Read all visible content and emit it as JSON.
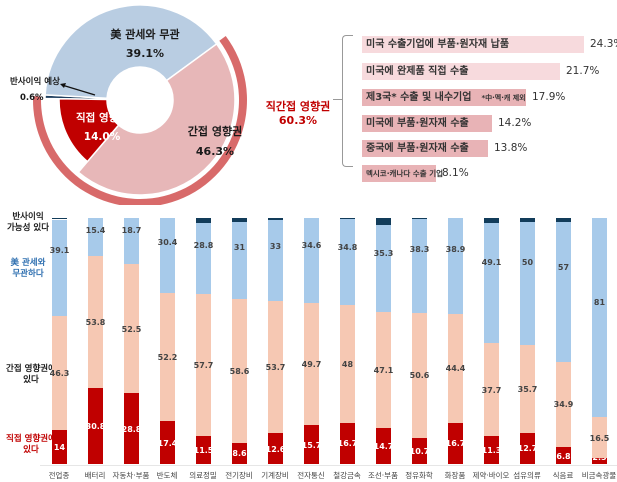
{
  "donut": {
    "segments": [
      {
        "key": "unrelated",
        "label": "美 관세와 무관",
        "value": "39.1%",
        "color": "#b9cde2"
      },
      {
        "key": "indirect",
        "label": "간접 영향권",
        "value": "46.3%",
        "color": "#e7b7b8"
      },
      {
        "key": "direct",
        "label": "직접 영향권",
        "value": "14.0%",
        "color": "#c00000"
      },
      {
        "key": "benefit",
        "label": "반사이익 예상",
        "value": "0.6%",
        "color": "#1f3f5f"
      }
    ],
    "outer_ring_label": "직간접 영향권",
    "outer_ring_value": "60.3%",
    "outer_ring_color": "#d86a6a"
  },
  "breakdown": {
    "items": [
      {
        "label": "미국 수출기업에 부품·원자재 납품",
        "value": "24.3%",
        "note": ""
      },
      {
        "label": "미국에 완제품 직접 수출",
        "value": "21.7%",
        "note": ""
      },
      {
        "label": "제3국* 수출 및 내수기업",
        "value": "17.9%",
        "note": "*中·멕·캐 제외"
      },
      {
        "label": "미국에 부품·원자재 수출",
        "value": "14.2%",
        "note": ""
      },
      {
        "label": "중국에 부품·원자재 수출",
        "value": "13.8%",
        "note": ""
      },
      {
        "label": "멕시코·캐나다 수출 기업",
        "value": "8.1%",
        "note": ""
      }
    ]
  },
  "legend": {
    "benefit": "반사이익\n가능성 있다",
    "unrelated": "美 관세와\n무관하다",
    "indirect": "간접 영향권에\n있다",
    "direct": "직접 영향권에\n있다"
  },
  "chart_data": [
    {
      "type": "pie",
      "title": "",
      "categories": [
        "美 관세와 무관",
        "간접 영향권",
        "직접 영향권",
        "반사이익 예상"
      ],
      "values": [
        39.1,
        46.3,
        14.0,
        0.6
      ],
      "annotations": [
        "직간접 영향권 60.3%"
      ]
    },
    {
      "type": "bar",
      "orientation": "horizontal",
      "categories": [
        "미국 수출기업에 부품·원자재 납품",
        "미국에 완제품 직접 수출",
        "제3국* 수출 및 내수기업",
        "미국에 부품·원자재 수출",
        "중국에 부품·원자재 수출",
        "멕시코·캐나다 수출 기업"
      ],
      "values": [
        24.3,
        21.7,
        17.9,
        14.2,
        13.8,
        8.1
      ],
      "annotations": [
        "*中·멕·캐 제외"
      ]
    },
    {
      "type": "bar",
      "stacked": true,
      "normalized": true,
      "categories": [
        "전업종",
        "배터리",
        "자동차·부품",
        "반도체",
        "의료정밀",
        "전기장비",
        "기계장비",
        "전자통신",
        "철강금속",
        "조선·부품",
        "정유화학",
        "화장품",
        "제약·바이오",
        "섬유의류",
        "식음료",
        "비금속광물"
      ],
      "series": [
        {
          "name": "직접 영향권에 있다",
          "color": "#c00000",
          "values": [
            14,
            30.8,
            28.8,
            17.4,
            11.5,
            8.6,
            12.6,
            15.7,
            16.7,
            14.7,
            10.7,
            16.7,
            11.3,
            12.7,
            6.8,
            2.5
          ]
        },
        {
          "name": "간접 영향권에 있다",
          "color": "#f6c8b3",
          "values": [
            46.3,
            53.8,
            52.5,
            52.2,
            57.7,
            58.6,
            53.7,
            49.7,
            48,
            47.1,
            50.6,
            44.4,
            37.7,
            35.7,
            34.9,
            16.5
          ]
        },
        {
          "name": "美 관세와 무관하다",
          "color": "#a7caea",
          "values": [
            39.1,
            15.4,
            18.7,
            30.4,
            28.8,
            31,
            33,
            34.6,
            34.8,
            35.3,
            38.3,
            38.9,
            49.1,
            50,
            57,
            81
          ]
        },
        {
          "name": "반사이익 가능성 있다",
          "color": "#123c5a",
          "values": [
            0.6,
            0,
            0,
            0,
            2.0,
            1.8,
            0.7,
            0,
            0.5,
            2.9,
            0.4,
            0,
            1.9,
            1.6,
            1.5,
            0
          ]
        }
      ],
      "ylim": [
        0,
        100
      ]
    }
  ]
}
